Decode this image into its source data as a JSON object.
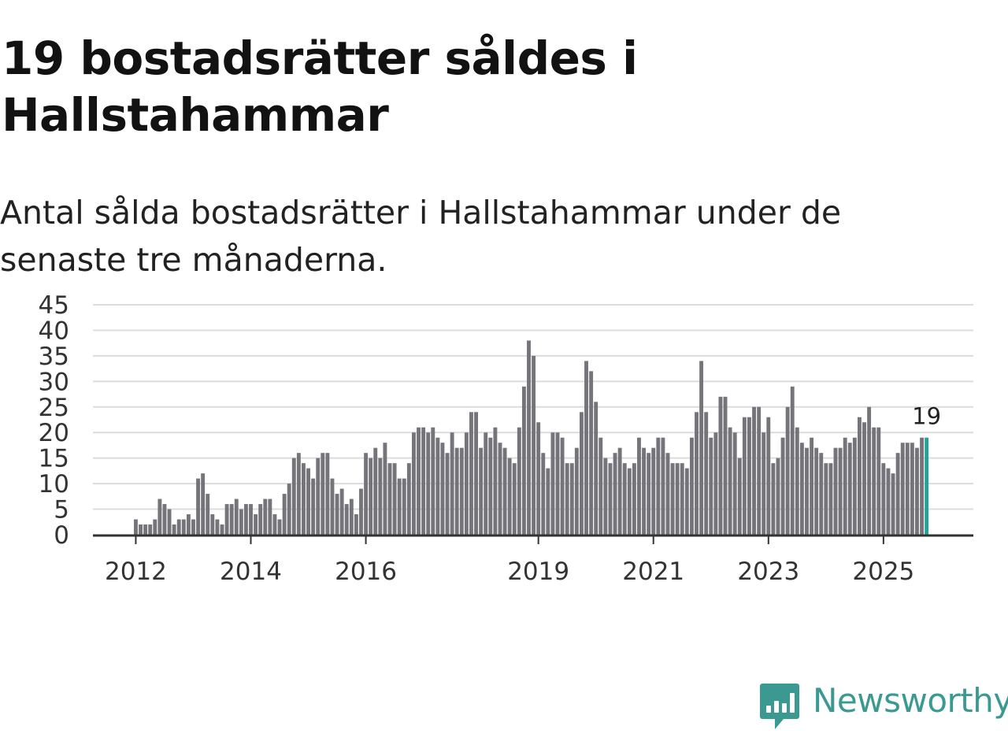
{
  "title": "19 bostadsrätter såldes i Hallstahammar",
  "subtitle": "Antal sålda bostadsrätter i Hallstahammar under de senaste tre månaderna.",
  "logo": {
    "text": "Newsworthy"
  },
  "colors": {
    "bar": "#75747a",
    "highlight": "#22a39a",
    "grid": "#dcdcdc",
    "axis": "#333333",
    "brand": "#3a9a92"
  },
  "chart_data": {
    "type": "bar",
    "title": "19 bostadsrätter såldes i Hallstahammar",
    "xlabel": "",
    "ylabel": "",
    "ylim": [
      0,
      45
    ],
    "y_ticks": [
      "0",
      "5",
      "10",
      "15",
      "20",
      "25",
      "30",
      "35",
      "40",
      "45"
    ],
    "x_ticks": [
      {
        "label": "2012",
        "index": 0
      },
      {
        "label": "2014",
        "index": 24
      },
      {
        "label": "2016",
        "index": 48
      },
      {
        "label": "2019",
        "index": 84
      },
      {
        "label": "2021",
        "index": 108
      },
      {
        "label": "2023",
        "index": 132
      },
      {
        "label": "2025",
        "index": 156
      }
    ],
    "start_period": "2012-01",
    "end_period": "2025-09",
    "series_name": "Antal sålda bostadsrätter",
    "values": [
      3,
      2,
      2,
      2,
      3,
      7,
      6,
      5,
      2,
      3,
      3,
      4,
      3,
      11,
      12,
      8,
      4,
      3,
      2,
      6,
      6,
      7,
      5,
      6,
      6,
      4,
      6,
      7,
      7,
      4,
      3,
      8,
      10,
      15,
      16,
      14,
      13,
      11,
      15,
      16,
      16,
      11,
      8,
      9,
      6,
      7,
      4,
      9,
      16,
      15,
      17,
      15,
      18,
      14,
      14,
      11,
      11,
      14,
      20,
      21,
      21,
      20,
      21,
      19,
      18,
      16,
      20,
      17,
      17,
      20,
      24,
      24,
      17,
      20,
      19,
      21,
      18,
      17,
      15,
      14,
      21,
      29,
      38,
      35,
      22,
      16,
      13,
      20,
      20,
      19,
      14,
      14,
      17,
      24,
      34,
      32,
      26,
      19,
      15,
      14,
      16,
      17,
      14,
      13,
      14,
      19,
      17,
      16,
      17,
      19,
      19,
      16,
      14,
      14,
      14,
      13,
      19,
      24,
      34,
      24,
      19,
      20,
      27,
      27,
      21,
      20,
      15,
      23,
      23,
      25,
      25,
      20,
      23,
      14,
      15,
      19,
      25,
      29,
      21,
      18,
      17,
      19,
      17,
      16,
      14,
      14,
      17,
      17,
      19,
      18,
      19,
      23,
      22,
      25,
      21,
      21,
      14,
      13,
      12,
      16,
      18,
      18,
      18,
      17,
      19,
      19
    ],
    "highlight_last": true,
    "last_value_label": "19"
  }
}
